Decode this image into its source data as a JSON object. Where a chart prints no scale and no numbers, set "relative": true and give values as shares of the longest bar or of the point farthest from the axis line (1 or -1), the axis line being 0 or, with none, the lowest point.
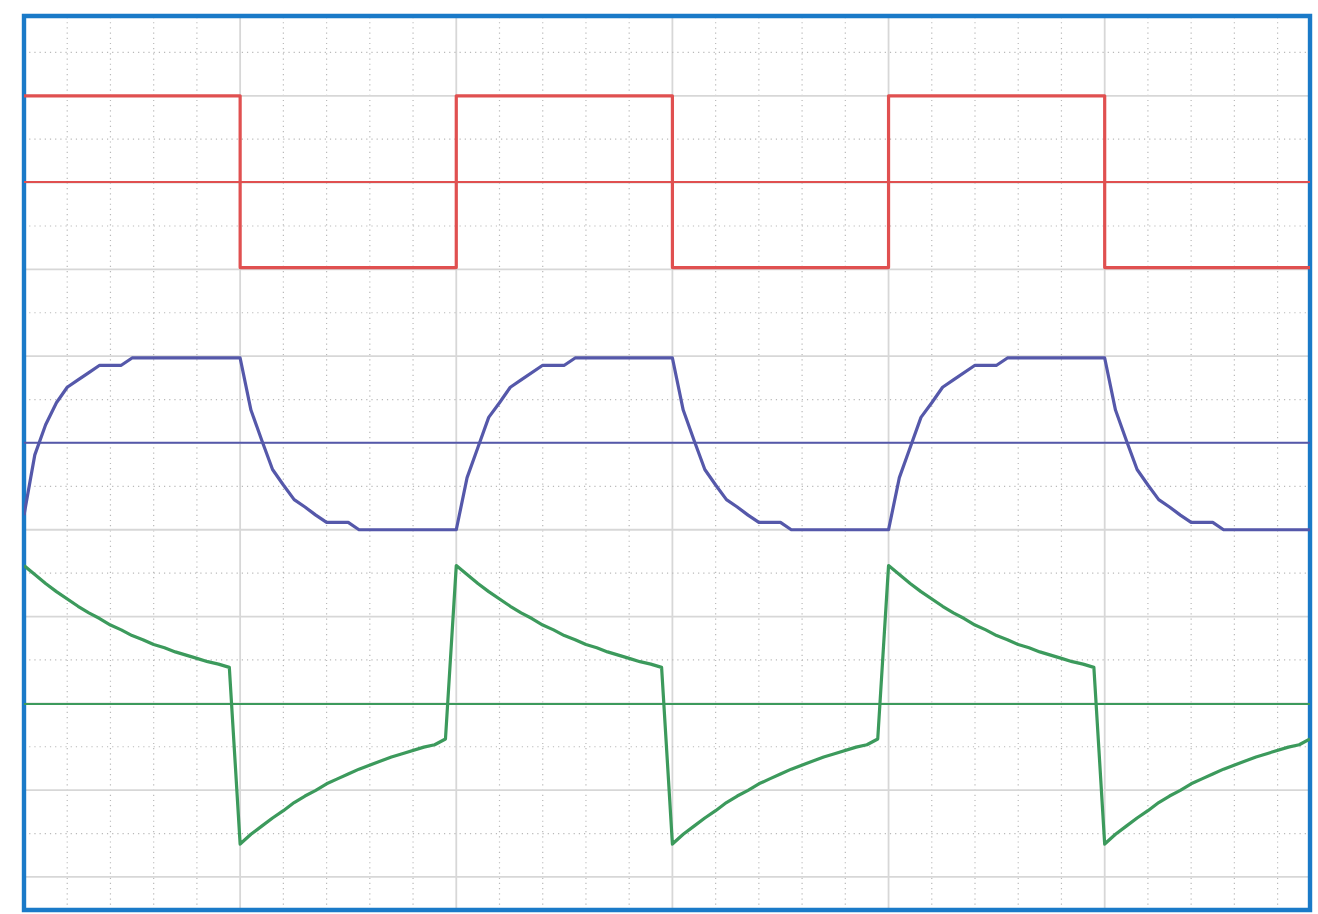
{
  "chart_data": {
    "type": "line",
    "relative": true,
    "grid": true,
    "line_style": "solid",
    "categories": [
      null,
      null,
      null,
      null,
      null,
      null,
      null,
      null,
      null,
      null,
      null,
      null,
      null,
      null,
      null,
      null,
      null,
      null,
      null,
      null,
      null,
      null,
      null,
      null,
      null,
      null,
      null,
      null,
      null,
      null,
      null,
      null,
      null,
      null,
      null,
      null,
      null,
      null,
      null,
      null,
      null,
      null,
      null,
      null,
      null,
      null,
      null,
      null,
      null,
      null,
      null,
      null,
      null,
      null,
      null,
      null,
      null,
      null,
      null,
      null,
      null,
      null,
      null,
      null,
      null,
      null,
      null,
      null,
      null,
      null,
      null,
      null,
      null,
      null,
      null,
      null,
      null,
      null,
      null,
      null,
      null,
      null,
      null,
      null,
      null,
      null,
      null,
      null,
      null,
      null,
      null,
      null,
      null,
      null,
      null,
      null,
      null,
      null,
      null,
      null,
      null,
      null,
      null,
      null,
      null,
      null,
      null,
      null,
      null,
      null,
      null,
      null,
      null,
      null,
      null,
      null,
      null,
      null,
      null,
      null
    ],
    "series": [
      {
        "type": "step",
        "color": "#e05050",
        "values": [
          1,
          1,
          1,
          1,
          1,
          1,
          1,
          1,
          1,
          1,
          1,
          1,
          1,
          1,
          1,
          1,
          1,
          1,
          1,
          1,
          0.789,
          0.789,
          0.789,
          0.789,
          0.789,
          0.789,
          0.789,
          0.789,
          0.789,
          0.789,
          0.789,
          0.789,
          0.789,
          0.789,
          0.789,
          0.789,
          0.789,
          0.789,
          0.789,
          0.789,
          1,
          1,
          1,
          1,
          1,
          1,
          1,
          1,
          1,
          1,
          1,
          1,
          1,
          1,
          1,
          1,
          1,
          1,
          1,
          1,
          0.789,
          0.789,
          0.789,
          0.789,
          0.789,
          0.789,
          0.789,
          0.789,
          0.789,
          0.789,
          0.789,
          0.789,
          0.789,
          0.789,
          0.789,
          0.789,
          0.789,
          0.789,
          0.789,
          0.789,
          1,
          1,
          1,
          1,
          1,
          1,
          1,
          1,
          1,
          1,
          1,
          1,
          1,
          1,
          1,
          1,
          1,
          1,
          1,
          1,
          0.789,
          0.789,
          0.789,
          0.789,
          0.789,
          0.789,
          0.789,
          0.789,
          0.789,
          0.789,
          0.789,
          0.789,
          0.789,
          0.789,
          0.789,
          0.789,
          0.789,
          0.789,
          0.789,
          0.789
        ]
      },
      {
        "type": "line",
        "color": "#5558aa",
        "values": [
          0.485,
          0.559,
          0.596,
          0.623,
          0.642,
          0.651,
          0.66,
          0.669,
          0.669,
          0.669,
          0.678,
          0.678,
          0.678,
          0.678,
          0.678,
          0.678,
          0.678,
          0.678,
          0.678,
          0.678,
          0.678,
          0.614,
          0.577,
          0.541,
          0.522,
          0.504,
          0.495,
          0.485,
          0.476,
          0.476,
          0.476,
          0.467,
          0.467,
          0.467,
          0.467,
          0.467,
          0.467,
          0.467,
          0.467,
          0.467,
          0.467,
          0.531,
          0.568,
          0.605,
          0.623,
          0.642,
          0.651,
          0.66,
          0.669,
          0.669,
          0.669,
          0.678,
          0.678,
          0.678,
          0.678,
          0.678,
          0.678,
          0.678,
          0.678,
          0.678,
          0.678,
          0.614,
          0.577,
          0.541,
          0.522,
          0.504,
          0.495,
          0.485,
          0.476,
          0.476,
          0.476,
          0.467,
          0.467,
          0.467,
          0.467,
          0.467,
          0.467,
          0.467,
          0.467,
          0.467,
          0.467,
          0.531,
          0.568,
          0.605,
          0.623,
          0.642,
          0.651,
          0.66,
          0.669,
          0.669,
          0.669,
          0.678,
          0.678,
          0.678,
          0.678,
          0.678,
          0.678,
          0.678,
          0.678,
          0.678,
          0.678,
          0.614,
          0.577,
          0.541,
          0.522,
          0.504,
          0.495,
          0.485,
          0.476,
          0.476,
          0.476,
          0.467,
          0.467,
          0.467,
          0.467,
          0.467,
          0.467,
          0.467,
          0.467,
          0.467
        ]
      },
      {
        "type": "line",
        "color": "#3c9a5c",
        "values": [
          0.423,
          0.412,
          0.401,
          0.391,
          0.382,
          0.373,
          0.365,
          0.358,
          0.35,
          0.344,
          0.337,
          0.332,
          0.326,
          0.322,
          0.317,
          0.313,
          0.309,
          0.305,
          0.302,
          0.298,
          0.081,
          0.093,
          0.103,
          0.113,
          0.122,
          0.132,
          0.14,
          0.147,
          0.155,
          0.161,
          0.167,
          0.173,
          0.178,
          0.183,
          0.188,
          0.192,
          0.196,
          0.2,
          0.203,
          0.21,
          0.423,
          0.412,
          0.401,
          0.391,
          0.382,
          0.373,
          0.365,
          0.358,
          0.35,
          0.344,
          0.337,
          0.332,
          0.326,
          0.322,
          0.317,
          0.313,
          0.309,
          0.305,
          0.302,
          0.298,
          0.081,
          0.093,
          0.103,
          0.113,
          0.122,
          0.132,
          0.14,
          0.147,
          0.155,
          0.161,
          0.167,
          0.173,
          0.178,
          0.183,
          0.188,
          0.192,
          0.196,
          0.2,
          0.203,
          0.21,
          0.423,
          0.412,
          0.401,
          0.391,
          0.382,
          0.373,
          0.365,
          0.358,
          0.35,
          0.344,
          0.337,
          0.332,
          0.326,
          0.322,
          0.317,
          0.313,
          0.309,
          0.305,
          0.302,
          0.298,
          0.081,
          0.093,
          0.103,
          0.113,
          0.122,
          0.132,
          0.14,
          0.147,
          0.155,
          0.161,
          0.167,
          0.173,
          0.178,
          0.183,
          0.188,
          0.192,
          0.196,
          0.2,
          0.203,
          0.21
        ]
      }
    ],
    "ref_lines": [
      {
        "axis": "y",
        "value": 0.894,
        "color": "#e05050"
      },
      {
        "axis": "y",
        "value": 0.574,
        "color": "#5558aa"
      },
      {
        "axis": "y",
        "value": 0.253,
        "color": "#3c9a5c"
      }
    ]
  }
}
